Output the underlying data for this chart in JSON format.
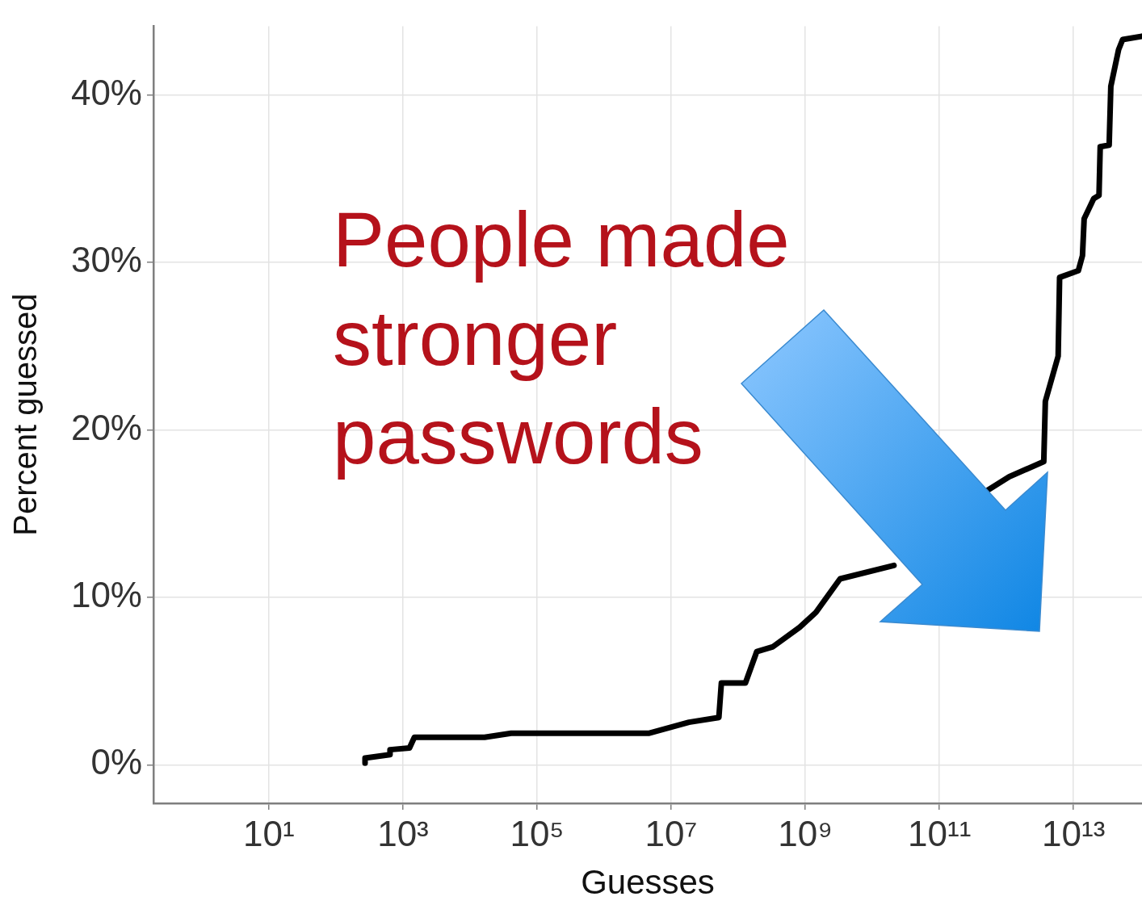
{
  "chart_data": {
    "type": "line",
    "xlabel": "Guesses",
    "ylabel": "Percent guessed",
    "log": "x",
    "grid": true,
    "legend": false,
    "marker": "none",
    "line_style": "solid",
    "color": "#000000",
    "x": [
      272,
      272,
      641,
      641,
      1250,
      1480,
      16500,
      41100,
      4600000.0,
      18400000.0,
      51400000.0,
      56000000.0,
      128000000.0,
      189000000.0,
      330000000.0,
      820000000.0,
      1440000000.0,
      3300000000.0,
      21000000000.0,
      100000000000.0,
      530000000000.0,
      1100000000000.0,
      3600000000000.0,
      3800000000000.0,
      5900000000000.0,
      6200000000000.0,
      11800000000000.0,
      13600000000000.0,
      14400000000000.0,
      20000000000000.0,
      24000000000000.0,
      25000000000000.0,
      34000000000000.0,
      36000000000000.0,
      47000000000000.0,
      54000000000000.0,
      105000000000000.0
    ],
    "values": [
      0.1,
      0.4,
      0.6,
      0.9,
      1.0,
      1.64,
      1.64,
      1.88,
      1.88,
      2.54,
      2.82,
      4.88,
      4.88,
      6.76,
      7.05,
      8.2,
      9.1,
      11.1,
      11.9,
      null,
      16.4,
      17.2,
      18.1,
      21.7,
      24.4,
      29.1,
      29.5,
      30.4,
      32.6,
      33.8,
      34.0,
      36.9,
      37.0,
      40.5,
      42.7,
      43.3,
      43.5
    ],
    "xlim": [
      0.19,
      105000000000000.0
    ],
    "xticks": [
      {
        "value": 10,
        "label": "10¹"
      },
      {
        "value": 1000,
        "label": "10³"
      },
      {
        "value": 100000,
        "label": "10⁵"
      },
      {
        "value": 10000000.0,
        "label": "10⁷"
      },
      {
        "value": 1000000000.0,
        "label": "10⁹"
      },
      {
        "value": 100000000000.0,
        "label": "10¹¹"
      },
      {
        "value": 10000000000000.0,
        "label": "10¹³"
      }
    ],
    "ylim": [
      -2.3,
      44.1
    ],
    "yticks": [
      {
        "value": 0,
        "label": "0%"
      },
      {
        "value": 10,
        "label": "10%"
      },
      {
        "value": 20,
        "label": "20%"
      },
      {
        "value": 30,
        "label": "30%"
      },
      {
        "value": 40,
        "label": "40%"
      }
    ],
    "annotations": [
      "People made stronger passwords"
    ]
  }
}
